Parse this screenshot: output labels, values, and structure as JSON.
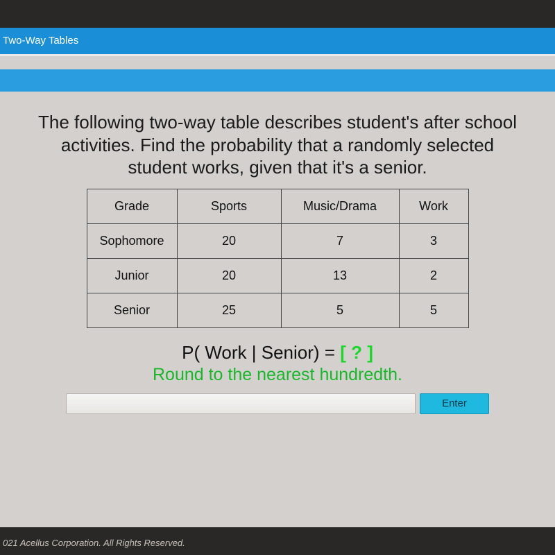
{
  "header": {
    "title": "Two-Way Tables"
  },
  "question": {
    "text": "The following two-way table describes student's after school activities.  Find the probability that a randomly selected student works, given that it's a senior."
  },
  "table": {
    "columns": [
      "Grade",
      "Sports",
      "Music/Drama",
      "Work"
    ],
    "rows": [
      {
        "grade": "Sophomore",
        "sports": "20",
        "music": "7",
        "work": "3"
      },
      {
        "grade": "Junior",
        "sports": "20",
        "music": "13",
        "work": "2"
      },
      {
        "grade": "Senior",
        "sports": "25",
        "music": "5",
        "work": "5"
      }
    ],
    "col_widths": {
      "grade": 130,
      "sports": 150,
      "music": 170,
      "work": 100
    },
    "border_color": "#444444",
    "background_color": "#d3d0cd",
    "font_size_pt": 14
  },
  "formula": {
    "prefix": "P( Work | Senior) = ",
    "blank": "[ ? ]",
    "hint": "Round to the nearest hundredth."
  },
  "answer": {
    "placeholder": "",
    "enter_label": "Enter"
  },
  "footer": {
    "text": "021 Acellus Corporation.  All Rights Reserved."
  },
  "colors": {
    "screen_bg": "#d3d0cd",
    "header_bg": "#1a8fd8",
    "second_bar_bg": "#2a9ce0",
    "accent_green": "#19d82a",
    "hint_green": "#19b82a",
    "enter_btn_bg": "#1fb9e0",
    "body_bg": "#2a2826"
  }
}
